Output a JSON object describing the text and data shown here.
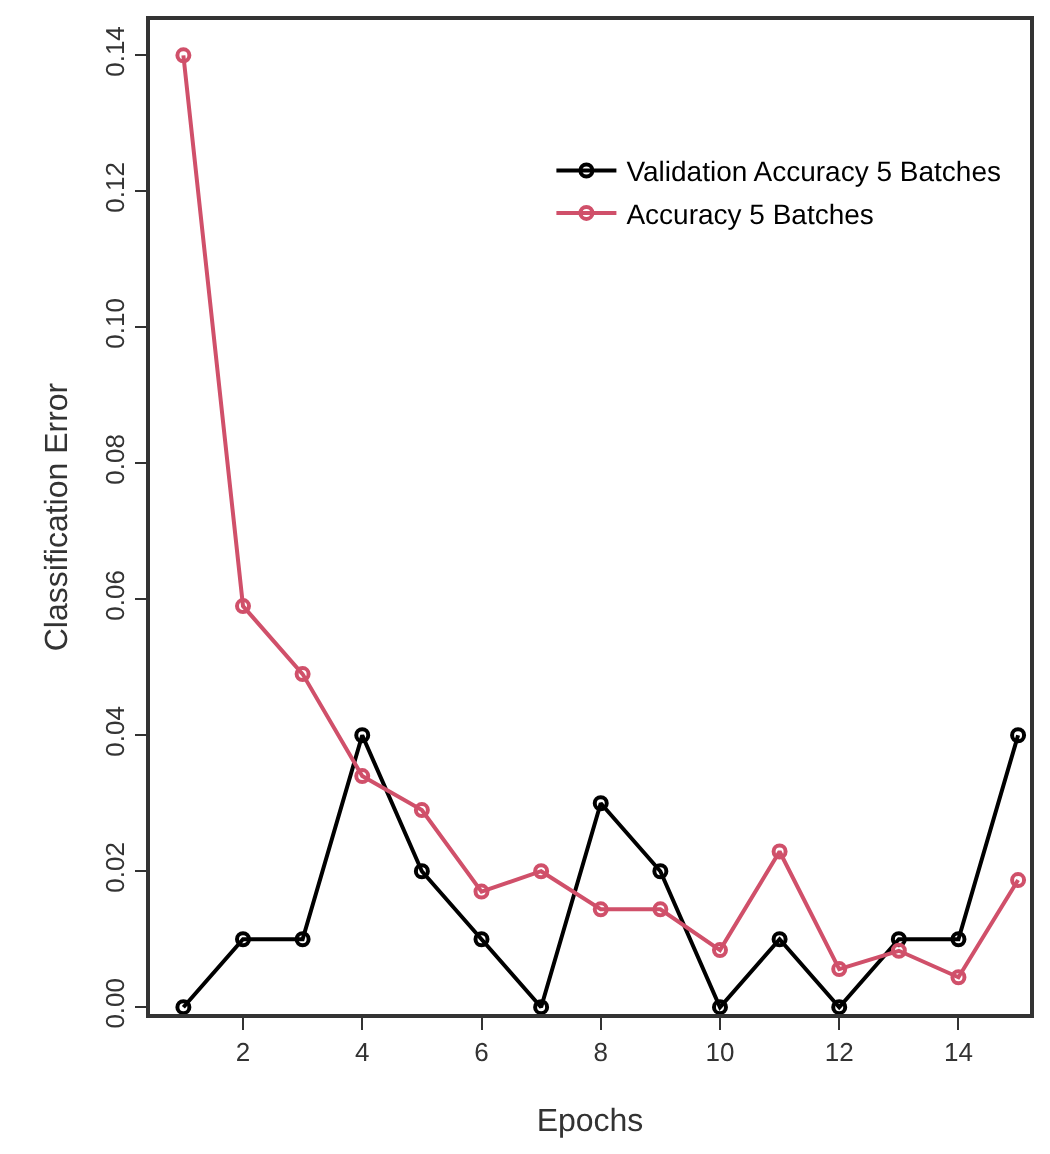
{
  "chart_data": {
    "type": "line",
    "xlabel": "Epochs",
    "ylabel": "Classification Error",
    "x": [
      1,
      2,
      3,
      4,
      5,
      6,
      7,
      8,
      9,
      10,
      11,
      12,
      13,
      14,
      15
    ],
    "series": [
      {
        "name": "Validation Accuracy 5 Batches",
        "color": "#000000",
        "values": [
          0,
          0.01,
          0.01,
          0.04,
          0.02,
          0.01,
          0,
          0.03,
          0.02,
          0,
          0.01,
          0,
          0.01,
          0.01,
          0.04
        ]
      },
      {
        "name": "Accuracy 5 Batches",
        "color": "#d0506a",
        "values": [
          0.14,
          0.059,
          0.049,
          0.034,
          0.029,
          0.017,
          0.02,
          0.0144,
          0.0144,
          0.0084,
          0.0229,
          0.0056,
          0.0083,
          0.0044,
          0.0187
        ]
      }
    ],
    "xlim": [
      0.44,
      15.2
    ],
    "ylim": [
      -0.001,
      0.1452
    ],
    "xticks": [
      2,
      4,
      6,
      8,
      10,
      12,
      14
    ],
    "yticks": [
      {
        "value": 0,
        "label": "0.00"
      },
      {
        "value": 0.02,
        "label": "0.02"
      },
      {
        "value": 0.04,
        "label": "0.04"
      },
      {
        "value": 0.06,
        "label": "0.06"
      },
      {
        "value": 0.08,
        "label": "0.08"
      },
      {
        "value": 0.1,
        "label": "0.10"
      },
      {
        "value": 0.12,
        "label": "0.12"
      },
      {
        "value": 0.14,
        "label": "0.14"
      }
    ],
    "grid": false,
    "legend": "top right",
    "marker": "circle",
    "line_style": "solid"
  }
}
